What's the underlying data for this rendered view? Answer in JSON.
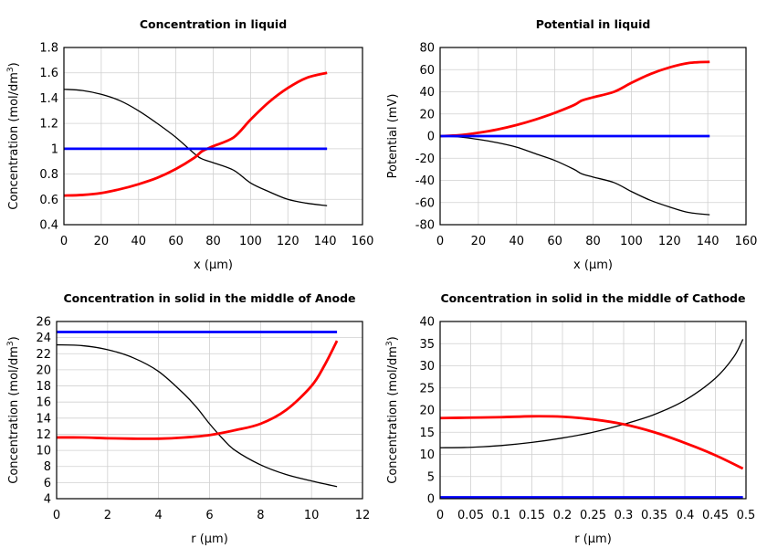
{
  "colors": {
    "black": "#000000",
    "red": "#ff0000",
    "blue": "#0000ff",
    "grid": "#d0d0d0"
  },
  "chart_data": [
    {
      "type": "line",
      "title": "Concentration in liquid",
      "xlabel": "x (µm)",
      "ylabel": "Concentration (mol/dm",
      "ylabel_sup": "3",
      "ylabel_end": ")",
      "xlim": [
        0,
        160
      ],
      "ylim": [
        0.4,
        1.8
      ],
      "xticks": [
        "0",
        "20",
        "40",
        "60",
        "80",
        "100",
        "120",
        "140",
        "160"
      ],
      "yticks": [
        "0.4",
        "0.6",
        "0.8",
        "1",
        "1.2",
        "1.4",
        "1.6",
        "1.8"
      ],
      "grid": true,
      "series": [
        {
          "color": "black",
          "x": [
            0,
            10,
            20,
            30,
            40,
            50,
            60,
            70,
            74,
            80,
            91,
            100,
            110,
            120,
            130,
            141
          ],
          "y": [
            1.47,
            1.46,
            1.43,
            1.38,
            1.3,
            1.2,
            1.09,
            0.96,
            0.92,
            0.89,
            0.83,
            0.73,
            0.66,
            0.6,
            0.57,
            0.55
          ]
        },
        {
          "color": "red",
          "x": [
            0,
            10,
            20,
            30,
            40,
            50,
            60,
            70,
            74,
            80,
            91,
            100,
            110,
            120,
            130,
            141
          ],
          "y": [
            0.63,
            0.635,
            0.65,
            0.68,
            0.72,
            0.77,
            0.84,
            0.93,
            0.98,
            1.02,
            1.09,
            1.23,
            1.37,
            1.48,
            1.56,
            1.6
          ]
        },
        {
          "color": "blue",
          "x": [
            0,
            141
          ],
          "y": [
            1,
            1
          ]
        }
      ]
    },
    {
      "type": "line",
      "title": "Potential in liquid",
      "xlabel": "x (µm)",
      "ylabel": "Potential (mV)",
      "xlim": [
        0,
        160
      ],
      "ylim": [
        -80,
        80
      ],
      "xticks": [
        "0",
        "20",
        "40",
        "60",
        "80",
        "100",
        "120",
        "140",
        "160"
      ],
      "yticks": [
        "-80",
        "-60",
        "-40",
        "-20",
        "0",
        "20",
        "40",
        "60",
        "80"
      ],
      "grid": true,
      "series": [
        {
          "color": "black",
          "x": [
            0,
            10,
            20,
            30,
            40,
            50,
            60,
            70,
            74,
            80,
            91,
            100,
            110,
            120,
            130,
            141
          ],
          "y": [
            0,
            -0.8,
            -3,
            -6,
            -10,
            -16,
            -22,
            -30,
            -34,
            -37,
            -42,
            -50,
            -58,
            -64,
            -69,
            -71
          ]
        },
        {
          "color": "red",
          "x": [
            0,
            10,
            20,
            30,
            40,
            50,
            60,
            70,
            74,
            80,
            91,
            100,
            110,
            120,
            130,
            141
          ],
          "y": [
            0,
            0.8,
            3,
            6,
            10,
            15,
            21,
            28,
            32,
            35,
            40,
            48,
            56,
            62,
            66,
            67
          ]
        },
        {
          "color": "blue",
          "x": [
            0,
            141
          ],
          "y": [
            0,
            0
          ]
        }
      ]
    },
    {
      "type": "line",
      "title": "Concentration in solid in the middle of Anode",
      "xlabel": "r (µm)",
      "ylabel": "Concentration (mol/dm",
      "ylabel_sup": "3",
      "ylabel_end": ")",
      "xlim": [
        0,
        12
      ],
      "ylim": [
        4,
        26
      ],
      "xticks": [
        "0",
        "2",
        "4",
        "6",
        "8",
        "10",
        "12"
      ],
      "yticks": [
        "4",
        "6",
        "8",
        "10",
        "12",
        "14",
        "16",
        "18",
        "20",
        "22",
        "24",
        "26"
      ],
      "grid": true,
      "series": [
        {
          "color": "black",
          "x": [
            0,
            1,
            2,
            3,
            4,
            5,
            5.5,
            6,
            6.5,
            7,
            8,
            9,
            10,
            11
          ],
          "y": [
            23.1,
            23.0,
            22.5,
            21.5,
            19.8,
            17.0,
            15.3,
            13.3,
            11.5,
            10.0,
            8.2,
            7.0,
            6.2,
            5.5
          ]
        },
        {
          "color": "red",
          "x": [
            0,
            1,
            2,
            3,
            4,
            5,
            6,
            7,
            8,
            9,
            10,
            10.5,
            11
          ],
          "y": [
            11.6,
            11.6,
            11.5,
            11.45,
            11.45,
            11.6,
            11.9,
            12.5,
            13.3,
            15,
            18,
            20.5,
            23.6
          ]
        },
        {
          "color": "blue",
          "x": [
            0,
            11
          ],
          "y": [
            24.7,
            24.7
          ]
        }
      ]
    },
    {
      "type": "line",
      "title": "Concentration in solid in the middle of Cathode",
      "xlabel": "r (µm)",
      "ylabel": "Concentration (mol/dm",
      "ylabel_sup": "3",
      "ylabel_end": ")",
      "xlim": [
        0,
        0.5
      ],
      "ylim": [
        0,
        40
      ],
      "xticks": [
        "0",
        "0.05",
        "0.1",
        "0.15",
        "0.2",
        "0.25",
        "0.3",
        "0.35",
        "0.4",
        "0.45",
        "0.5"
      ],
      "yticks": [
        "0",
        "5",
        "10",
        "15",
        "20",
        "25",
        "30",
        "35",
        "40"
      ],
      "grid": true,
      "series": [
        {
          "color": "black",
          "x": [
            0,
            0.05,
            0.1,
            0.15,
            0.2,
            0.25,
            0.3,
            0.35,
            0.4,
            0.45,
            0.48,
            0.495
          ],
          "y": [
            11.5,
            11.6,
            12.0,
            12.7,
            13.7,
            15.0,
            16.8,
            19.0,
            22.2,
            27.2,
            32,
            36
          ]
        },
        {
          "color": "red",
          "x": [
            0,
            0.05,
            0.1,
            0.15,
            0.2,
            0.25,
            0.3,
            0.35,
            0.4,
            0.45,
            0.495
          ],
          "y": [
            18.2,
            18.3,
            18.4,
            18.6,
            18.5,
            17.9,
            16.8,
            15.0,
            12.6,
            9.8,
            6.8
          ]
        },
        {
          "color": "blue",
          "x": [
            0,
            0.495
          ],
          "y": [
            0.3,
            0.3
          ]
        }
      ]
    }
  ]
}
